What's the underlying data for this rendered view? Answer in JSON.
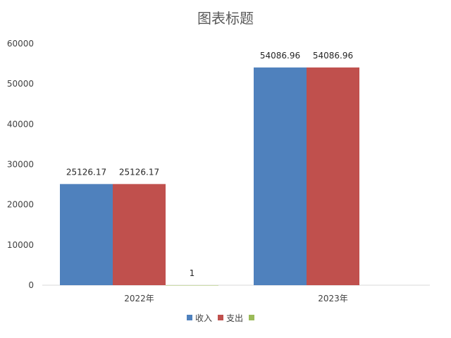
{
  "chart_data": {
    "type": "bar",
    "title": "图表标题",
    "categories": [
      "2022年",
      "2023年"
    ],
    "series": [
      {
        "name": "收入",
        "color": "#4f81bd",
        "values": [
          25126.17,
          54086.96
        ],
        "labels": [
          "25126.17",
          "54086.96"
        ]
      },
      {
        "name": "支出",
        "color": "#c0504d",
        "values": [
          25126.17,
          54086.96
        ],
        "labels": [
          "25126.17",
          "54086.96"
        ]
      },
      {
        "name": "",
        "color": "#9bbb59",
        "values": [
          1,
          null
        ],
        "labels": [
          "1",
          ""
        ]
      }
    ],
    "xlabel": "",
    "ylabel": "",
    "ylim": [
      0,
      60000
    ],
    "yticks": [
      "0",
      "10000",
      "20000",
      "30000",
      "40000",
      "50000",
      "60000"
    ],
    "grid": false,
    "legend_position": "bottom"
  }
}
